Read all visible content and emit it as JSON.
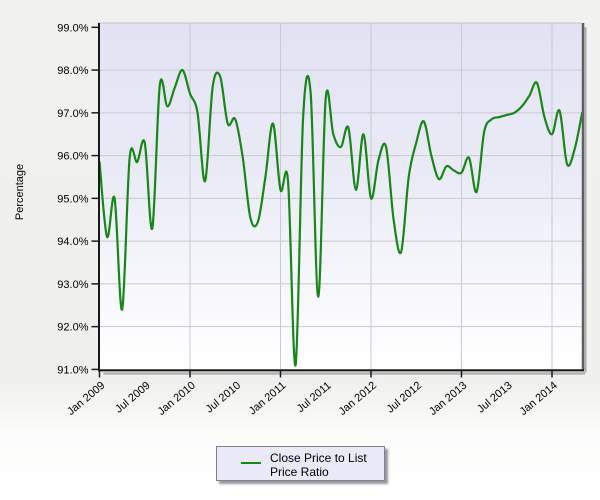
{
  "legend": {
    "label": "Close Price to List Price Ratio"
  },
  "colors": {
    "series": "#178717",
    "plot_bg_top": "#e2e2f3",
    "plot_bg_mid": "#ebebf7",
    "plot_bg_bottom": "#fdfdff",
    "grid": "#c9c9d2",
    "axis": "#1a1a1a",
    "right_border": "#5f5f62",
    "shadow": "#b2b2b2",
    "widget_bg": "#f0f0ee",
    "legend_bg": "#e9e9f7"
  },
  "chart_data": {
    "type": "line",
    "title": "",
    "xlabel": "",
    "ylabel": "Percentage",
    "ylim": [
      91,
      99
    ],
    "grid": true,
    "legend_position": "bottom",
    "frequency": "monthly",
    "x_start": "Jan 2009",
    "x_end": "May 2014",
    "x": [
      "2009-01",
      "2009-02",
      "2009-03",
      "2009-04",
      "2009-05",
      "2009-06",
      "2009-07",
      "2009-08",
      "2009-09",
      "2009-10",
      "2009-11",
      "2009-12",
      "2010-01",
      "2010-02",
      "2010-03",
      "2010-04",
      "2010-05",
      "2010-06",
      "2010-07",
      "2010-08",
      "2010-09",
      "2010-10",
      "2010-11",
      "2010-12",
      "2011-01",
      "2011-02",
      "2011-03",
      "2011-04",
      "2011-05",
      "2011-06",
      "2011-07",
      "2011-08",
      "2011-09",
      "2011-10",
      "2011-11",
      "2011-12",
      "2012-01",
      "2012-02",
      "2012-03",
      "2012-04",
      "2012-05",
      "2012-06",
      "2012-07",
      "2012-08",
      "2012-09",
      "2012-10",
      "2012-11",
      "2012-12",
      "2013-01",
      "2013-02",
      "2013-03",
      "2013-04",
      "2013-05",
      "2013-06",
      "2013-07",
      "2013-08",
      "2013-09",
      "2013-10",
      "2013-11",
      "2013-12",
      "2014-01",
      "2014-02",
      "2014-03",
      "2014-04",
      "2014-05"
    ],
    "series": [
      {
        "name": "Close Price to List Price Ratio",
        "color": "#178717",
        "values": [
          95.85,
          94.1,
          95.0,
          92.4,
          95.95,
          95.85,
          96.3,
          94.3,
          97.65,
          97.15,
          97.6,
          98.0,
          97.45,
          97.0,
          95.4,
          97.6,
          97.85,
          96.75,
          96.85,
          95.95,
          94.55,
          94.45,
          95.5,
          96.75,
          95.2,
          95.4,
          91.1,
          96.9,
          97.45,
          92.7,
          97.35,
          96.5,
          96.2,
          96.65,
          95.2,
          96.5,
          95.0,
          95.9,
          96.2,
          94.5,
          93.75,
          95.5,
          96.3,
          96.8,
          96.0,
          95.45,
          95.75,
          95.65,
          95.6,
          95.95,
          95.15,
          96.55,
          96.85,
          96.9,
          96.95,
          97.0,
          97.15,
          97.4,
          97.7,
          96.9,
          96.5,
          97.05,
          95.8,
          96.15,
          97.0
        ]
      }
    ],
    "y_tick_labels": [
      "99.0%",
      "98.0%",
      "97.0%",
      "96.0%",
      "95.0%",
      "94.0%",
      "93.0%",
      "92.0%",
      "91.0%"
    ],
    "x_tick_labels": [
      "Jan 2009",
      "Jul 2009",
      "Jan 2010",
      "Jul 2010",
      "Jan 2011",
      "Jul 2011",
      "Jan 2012",
      "Jul 2012",
      "Jan 2013",
      "Jul 2013",
      "Jan 2014"
    ],
    "x_tick_month_indices": [
      0,
      6,
      12,
      18,
      24,
      30,
      36,
      42,
      48,
      54,
      60
    ],
    "x_gridline_month_indices": [
      12,
      24,
      36,
      48,
      60
    ]
  }
}
